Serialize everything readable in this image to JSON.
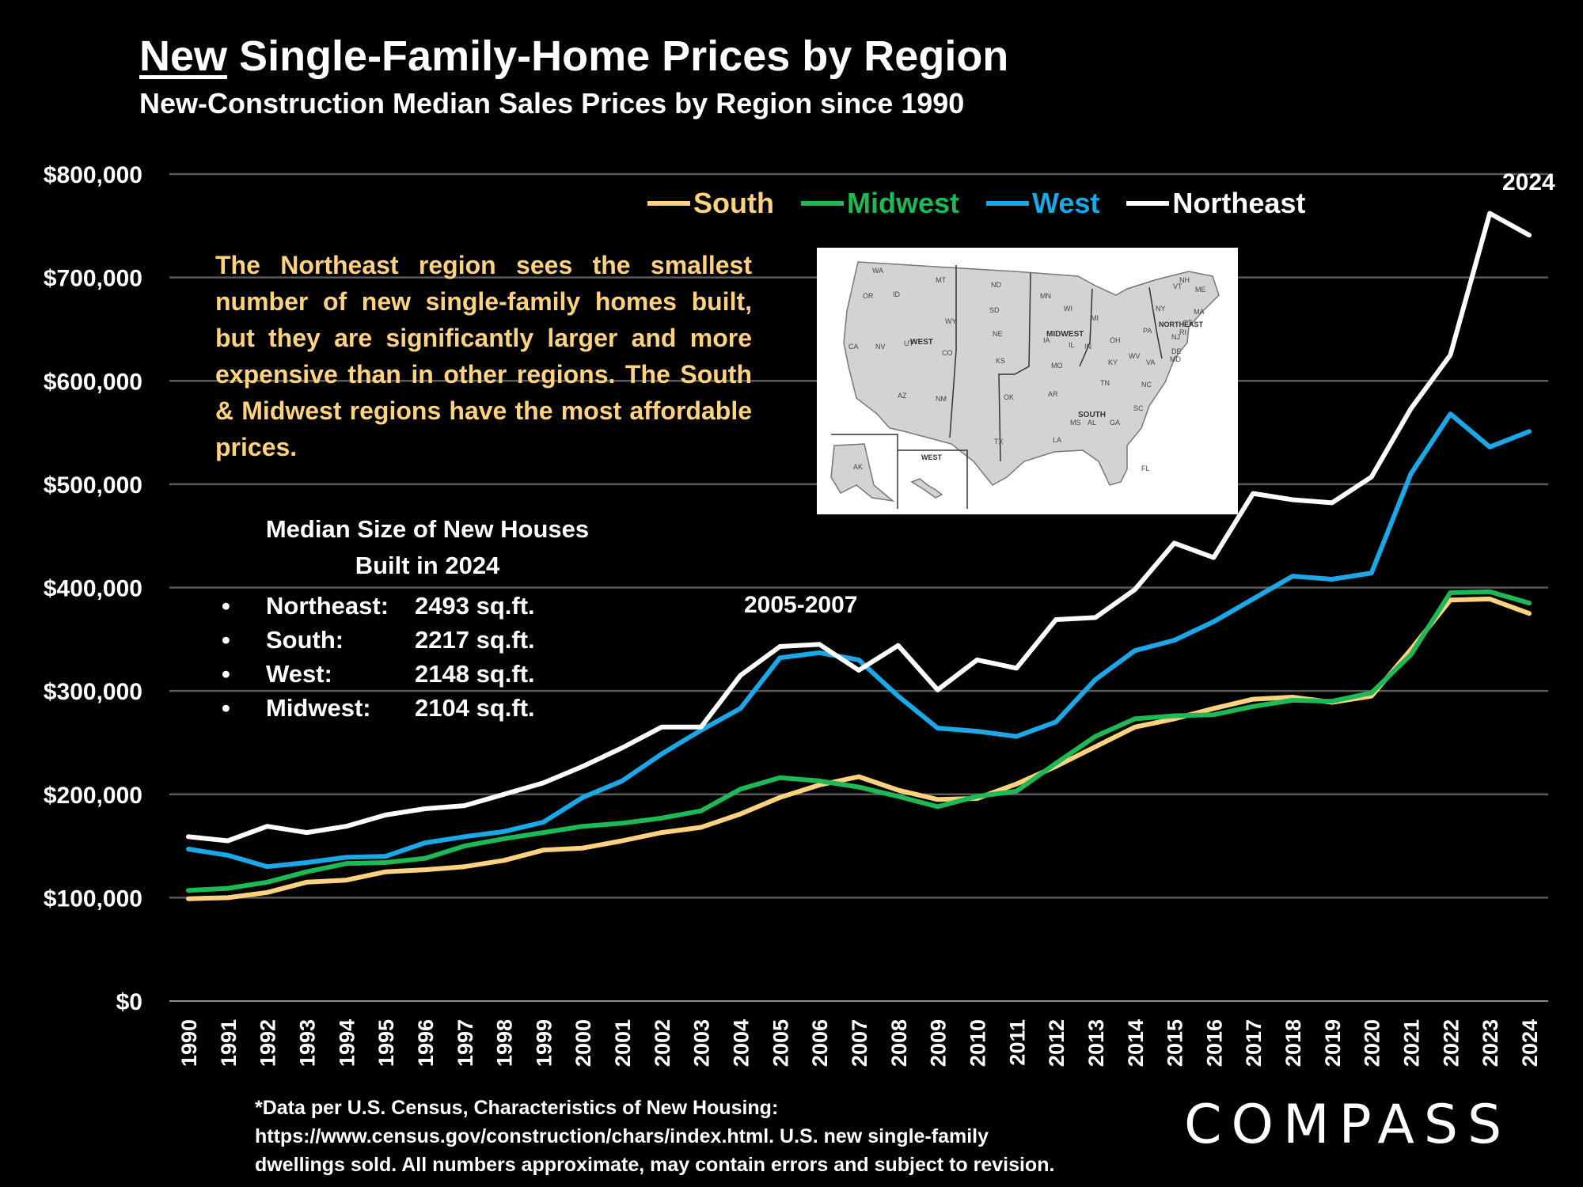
{
  "header": {
    "title_underlined": "New",
    "title_rest": " Single-Family-Home Prices by Region",
    "subtitle": "New-Construction Median Sales Prices by Region since 1990"
  },
  "callout_text": "The Northeast region sees the smallest number of new single-family homes built, but they are significantly larger and more expensive than in other regions. The South & Midwest regions have the most affordable prices.",
  "sizes_box": {
    "heading_line1": "Median Size of New Houses",
    "heading_line2": "Built in 2024",
    "rows": [
      {
        "bullet": "•",
        "region": "Northeast:",
        "value": "2493 sq.ft."
      },
      {
        "bullet": "•",
        "region": "South:",
        "value": "2217 sq.ft."
      },
      {
        "bullet": "•",
        "region": "West:",
        "value": "2148 sq.ft."
      },
      {
        "bullet": "•",
        "region": "Midwest:",
        "value": "2104 sq.ft."
      }
    ]
  },
  "annotations": {
    "peak_label": "2005-2007",
    "end_label": "2024"
  },
  "map": {
    "labels": {
      "west_region": "WEST",
      "midwest_region": "MIDWEST",
      "south_region": "SOUTH",
      "northeast_region": "NORTHEAST",
      "west_inset": "WEST",
      "states": [
        "WA",
        "OR",
        "ID",
        "MT",
        "WY",
        "CA",
        "NV",
        "UT",
        "CO",
        "AZ",
        "NM",
        "ND",
        "SD",
        "NE",
        "KS",
        "MN",
        "IA",
        "MO",
        "WI",
        "IL",
        "MI",
        "IN",
        "OH",
        "OK",
        "TX",
        "AR",
        "LA",
        "MS",
        "AL",
        "TN",
        "KY",
        "GA",
        "FL",
        "SC",
        "NC",
        "VA",
        "WV",
        "PA",
        "NY",
        "NJ",
        "DE",
        "MD",
        "CT",
        "RI",
        "MA",
        "VT",
        "NH",
        "ME",
        "AK"
      ]
    }
  },
  "footnote": {
    "line1": "*Data per U.S. Census, Characteristics of New Housing:",
    "line2": "https://www.census.gov/construction/chars/index.html. U.S. new single-family",
    "line3": "dwellings sold. All numbers approximate, may contain errors and subject to revision."
  },
  "logo": {
    "text": "COMPASS"
  },
  "chart_data": {
    "type": "line",
    "title": "New Single-Family-Home Prices by Region",
    "subtitle": "New-Construction Median Sales Prices by Region since 1990",
    "x": [
      "1990",
      "1991",
      "1992",
      "1993",
      "1994",
      "1995",
      "1996",
      "1997",
      "1998",
      "1999",
      "2000",
      "2001",
      "2002",
      "2003",
      "2004",
      "2005",
      "2006",
      "2007",
      "2008",
      "2009",
      "2010",
      "2011",
      "2012",
      "2013",
      "2014",
      "2015",
      "2016",
      "2017",
      "2018",
      "2019",
      "2020",
      "2021",
      "2022",
      "2023",
      "2024"
    ],
    "ylim": [
      0,
      800000
    ],
    "yticks": [
      0,
      100000,
      200000,
      300000,
      400000,
      500000,
      600000,
      700000,
      800000
    ],
    "ytick_labels": [
      "$0",
      "$100,000",
      "$200,000",
      "$300,000",
      "$400,000",
      "$500,000",
      "$600,000",
      "$700,000",
      "$800,000"
    ],
    "grid": true,
    "legend_position": "top-right",
    "series": [
      {
        "name": "South",
        "color": "#ffd27f",
        "values": [
          99000,
          100000,
          105000,
          115000,
          117000,
          125000,
          127000,
          130000,
          136000,
          146000,
          148000,
          155000,
          163000,
          168000,
          181000,
          197000,
          209000,
          217000,
          204000,
          195000,
          196000,
          210000,
          227000,
          246000,
          265000,
          273000,
          283000,
          292000,
          294000,
          289000,
          295000,
          340000,
          388000,
          389000,
          375000
        ]
      },
      {
        "name": "Midwest",
        "color": "#1db954",
        "values": [
          107000,
          109000,
          115000,
          125000,
          133000,
          134000,
          138000,
          150000,
          157000,
          163000,
          169000,
          172000,
          177000,
          184000,
          205000,
          216000,
          213000,
          207000,
          198000,
          188000,
          198000,
          203000,
          230000,
          256000,
          273000,
          276000,
          277000,
          285000,
          291000,
          290000,
          298000,
          335000,
          395000,
          396000,
          385000
        ]
      },
      {
        "name": "West",
        "color": "#1aa8e8",
        "values": [
          147000,
          141000,
          130000,
          134000,
          139000,
          140000,
          153000,
          159000,
          164000,
          173000,
          197000,
          213000,
          239000,
          262000,
          283000,
          332000,
          337000,
          330000,
          295000,
          264000,
          261000,
          256000,
          270000,
          311000,
          339000,
          349000,
          367000,
          389000,
          411000,
          408000,
          414000,
          510000,
          568000,
          536000,
          551000
        ]
      },
      {
        "name": "Northeast",
        "color": "#ffffff",
        "values": [
          159000,
          155000,
          169000,
          163000,
          169000,
          180000,
          186000,
          189000,
          200000,
          211000,
          227000,
          245000,
          265000,
          265000,
          315000,
          343000,
          345000,
          320000,
          344000,
          301000,
          330000,
          322000,
          369000,
          371000,
          398000,
          443000,
          429000,
          491000,
          485000,
          482000,
          507000,
          573000,
          625000,
          762000,
          741000
        ]
      }
    ]
  }
}
